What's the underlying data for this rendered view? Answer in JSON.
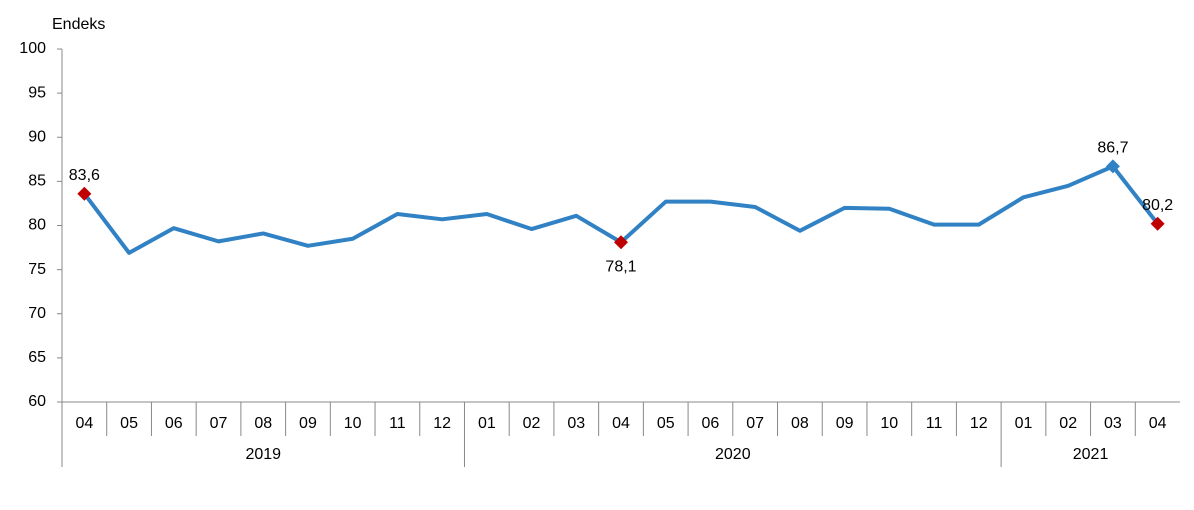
{
  "chart_data": {
    "type": "line",
    "y_label": "Endeks",
    "groups": [
      {
        "label": "2019",
        "categories": [
          "04",
          "05",
          "06",
          "07",
          "08",
          "09",
          "10",
          "11",
          "12"
        ]
      },
      {
        "label": "2020",
        "categories": [
          "01",
          "02",
          "03",
          "04",
          "05",
          "06",
          "07",
          "08",
          "09",
          "10",
          "11",
          "12"
        ]
      },
      {
        "label": "2021",
        "categories": [
          "01",
          "02",
          "03",
          "04"
        ]
      }
    ],
    "series": [
      {
        "color": "#3182c4",
        "values": [
          83.6,
          76.9,
          79.7,
          78.2,
          79.1,
          77.7,
          78.5,
          81.3,
          80.7,
          81.3,
          79.6,
          81.1,
          78.1,
          82.7,
          82.7,
          82.1,
          79.4,
          82.0,
          81.9,
          80.1,
          80.1,
          83.2,
          84.5,
          86.7,
          80.2
        ],
        "value_labels": [
          "83,6",
          null,
          null,
          null,
          null,
          null,
          null,
          null,
          null,
          null,
          null,
          null,
          "78,1",
          null,
          null,
          null,
          null,
          null,
          null,
          null,
          null,
          null,
          null,
          "86,7",
          "80,2"
        ],
        "marker_colors": [
          "#c00000",
          null,
          null,
          null,
          null,
          null,
          null,
          null,
          null,
          null,
          null,
          null,
          "#c00000",
          null,
          null,
          null,
          null,
          null,
          null,
          null,
          null,
          null,
          null,
          "#3182c4",
          "#c00000"
        ]
      }
    ],
    "ylim": [
      60,
      100
    ],
    "yticks": [
      60,
      65,
      70,
      75,
      80,
      85,
      90,
      95,
      100
    ],
    "grid": false
  }
}
